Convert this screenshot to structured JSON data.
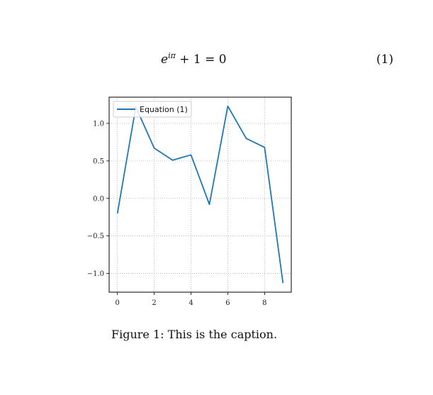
{
  "equation": {
    "base": "e",
    "exponent": "iπ",
    "rest": " + 1 = 0",
    "number": "(1)"
  },
  "caption": {
    "label": "Figure 1:",
    "text": "This is the caption."
  },
  "chart_data": {
    "type": "line",
    "title": "",
    "xlabel": "",
    "ylabel": "",
    "x": [
      0,
      1,
      2,
      3,
      4,
      5,
      6,
      7,
      8,
      9
    ],
    "series": [
      {
        "name": "Equation (1)",
        "values": [
          -0.2,
          1.22,
          0.67,
          0.51,
          0.58,
          -0.08,
          1.23,
          0.8,
          0.68,
          -1.13
        ],
        "color": "#1f77b4"
      }
    ],
    "xlim": [
      -0.45,
      9.45
    ],
    "ylim": [
      -1.25,
      1.35
    ],
    "xticks": [
      0,
      2,
      4,
      6,
      8
    ],
    "xtick_labels": [
      "0",
      "2",
      "4",
      "6",
      "8"
    ],
    "yticks": [
      -1.0,
      -0.5,
      0.0,
      0.5,
      1.0
    ],
    "ytick_labels": [
      "−1.0",
      "−0.5",
      "0.0",
      "0.5",
      "1.0"
    ],
    "grid": true,
    "grid_style": "dotted",
    "legend_position": "top-left"
  }
}
